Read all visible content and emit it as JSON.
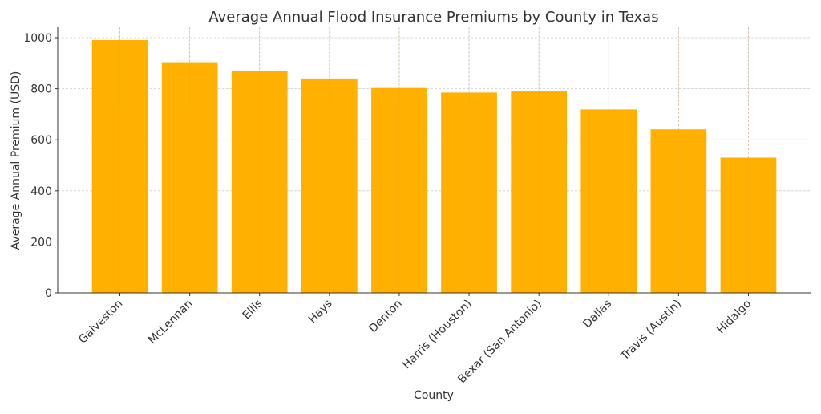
{
  "chart_data": {
    "type": "bar",
    "title": "Average Annual Flood Insurance Premiums by County in Texas",
    "xlabel": "County",
    "ylabel": "Average Annual Premium (USD)",
    "categories": [
      "Galveston",
      "McLennan",
      "Ellis",
      "Hays",
      "Denton",
      "Harris (Houston)",
      "Bexar (San Antonio)",
      "Dallas",
      "Travis (Austin)",
      "Hidalgo"
    ],
    "values": [
      991,
      904,
      869,
      840,
      803,
      785,
      792,
      719,
      641,
      530
    ],
    "ylim": [
      0,
      1041
    ],
    "yticks": [
      0,
      200,
      400,
      600,
      800,
      1000
    ],
    "grid": true,
    "bar_color": "#FFB000",
    "legend": "none"
  }
}
